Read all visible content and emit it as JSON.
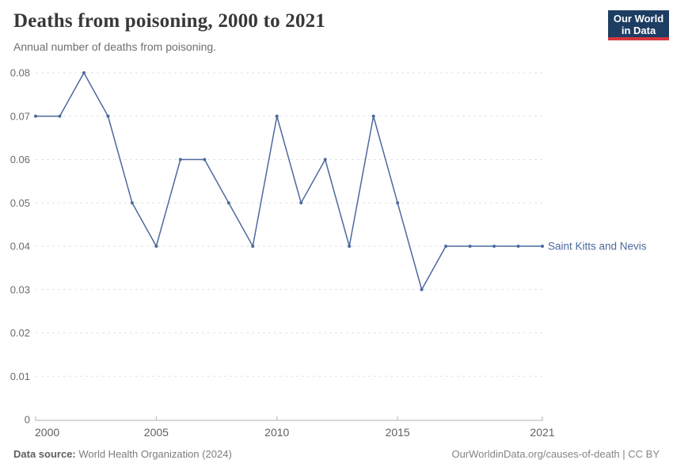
{
  "header": {
    "logo": {
      "line1": "Our World",
      "line2": "in Data",
      "bg_color": "#1d3d63",
      "accent_color": "#d8353f"
    }
  },
  "footer": {
    "source_label": "Data source:",
    "source_text": " World Health Organization (2024)",
    "credit": "OurWorldinData.org/causes-of-death | CC BY"
  },
  "colors": {
    "series_blue": "#4c6a9c",
    "gridline": "#e3e3e3",
    "axis": "#b1b1b1",
    "tick_text": "#6b6b6b",
    "x_tick_text": "#606060"
  },
  "chart_data": {
    "type": "line",
    "title": "Deaths from poisoning, 2000 to 2021",
    "subtitle": "Annual number of deaths from poisoning.",
    "xlabel": "",
    "ylabel": "",
    "xlim": [
      2000,
      2021
    ],
    "ylim": [
      0,
      0.08
    ],
    "grid": "horizontal-dashed",
    "legend_position": "end-of-line-label",
    "x": [
      2000,
      2001,
      2002,
      2003,
      2004,
      2005,
      2006,
      2007,
      2008,
      2009,
      2010,
      2011,
      2012,
      2013,
      2014,
      2015,
      2016,
      2017,
      2018,
      2019,
      2020,
      2021
    ],
    "series": [
      {
        "name": "Saint Kitts and Nevis",
        "color": "#4c6a9c",
        "values": [
          0.07,
          0.07,
          0.08,
          0.07,
          0.05,
          0.04,
          0.06,
          0.06,
          0.05,
          0.04,
          0.07,
          0.05,
          0.06,
          0.04,
          0.07,
          0.05,
          0.03,
          0.04,
          0.04,
          0.04,
          0.04,
          0.04
        ]
      }
    ],
    "yticks": [
      {
        "v": 0,
        "label": "0"
      },
      {
        "v": 0.01,
        "label": "0.01"
      },
      {
        "v": 0.02,
        "label": "0.02"
      },
      {
        "v": 0.03,
        "label": "0.03"
      },
      {
        "v": 0.04,
        "label": "0.04"
      },
      {
        "v": 0.05,
        "label": "0.05"
      },
      {
        "v": 0.06,
        "label": "0.06"
      },
      {
        "v": 0.07,
        "label": "0.07"
      },
      {
        "v": 0.08,
        "label": "0.08"
      }
    ],
    "xticks": [
      {
        "v": 2000,
        "label": "2000",
        "anchor": "start"
      },
      {
        "v": 2005,
        "label": "2005",
        "anchor": "middle"
      },
      {
        "v": 2010,
        "label": "2010",
        "anchor": "middle"
      },
      {
        "v": 2015,
        "label": "2015",
        "anchor": "middle"
      },
      {
        "v": 2021,
        "label": "2021",
        "anchor": "middle"
      }
    ]
  }
}
